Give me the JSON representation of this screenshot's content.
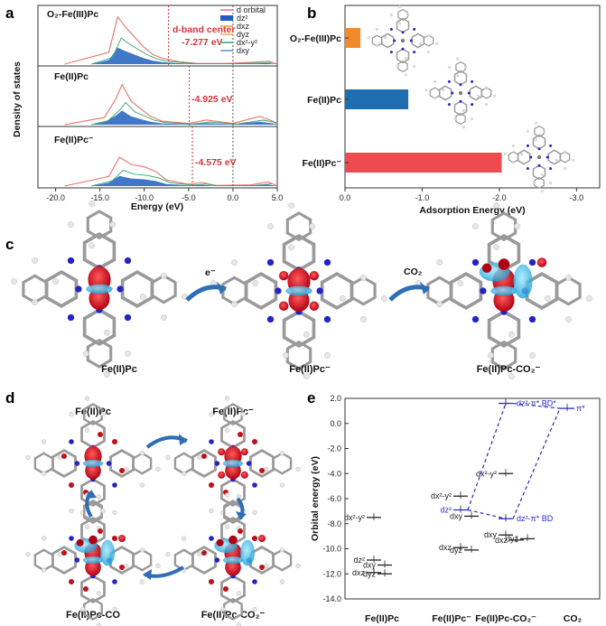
{
  "panel_labels": {
    "a": "a",
    "b": "b",
    "c": "c",
    "d": "d",
    "e": "e"
  },
  "panel_a": {
    "ylabel": "Density of states",
    "xlabel": "Energy (eV)",
    "xticks": [
      "-20.0",
      "-15.0",
      "-10.0",
      "-5.0",
      "0.0",
      "5.0"
    ],
    "subplots": [
      {
        "title": "O₂-Fe(III)Pc",
        "annotation_title": "d-band center",
        "annotation": "-7.277 eV",
        "dband": -7.277
      },
      {
        "title": "Fe(II)Pc",
        "annotation": "-4.925 eV",
        "dband": -4.925
      },
      {
        "title": "Fe(II)Pc⁻",
        "annotation": "-4.575 eV",
        "dband": -4.575
      }
    ],
    "legend": [
      {
        "label": "d orbital",
        "color": "#e8736b"
      },
      {
        "label": "dz²",
        "color": "#1f5fbf"
      },
      {
        "label": "dxz",
        "color": "#e89b3b"
      },
      {
        "label": "dyz",
        "color": "#e0b05a"
      },
      {
        "label": "dx²-y²",
        "color": "#2ea86b"
      },
      {
        "label": "dxy",
        "color": "#5a8fc9"
      }
    ]
  },
  "chart_data": [
    {
      "type": "bar",
      "orientation": "horizontal",
      "categories": [
        "O₂-Fe(III)Pc",
        "Fe(II)Pc",
        "Fe(II)Pc⁻"
      ],
      "values": [
        -0.2,
        -0.82,
        -2.03
      ],
      "colors": [
        "#f08a2a",
        "#1f6fb0",
        "#ef4a50"
      ],
      "xlabel": "Adsorption Energy (eV)",
      "xticks": [
        "0.0",
        "-1.0",
        "-2.0",
        "-3.0"
      ],
      "xlim": [
        0,
        -3.3
      ]
    },
    {
      "type": "scatter",
      "ylabel": "Orbital energy (eV)",
      "yticks": [
        "2.0",
        "0.0",
        "-2.0",
        "-4.0",
        "-6.0",
        "-8.0",
        "-10.0",
        "-12.0",
        "-14.0"
      ],
      "ylim": [
        -14,
        2
      ],
      "xcategories": [
        "Fe(II)Pc",
        "Fe(II)Pc⁻",
        "Fe(II)Pc-CO₂⁻",
        "CO₂"
      ]
    }
  ],
  "panel_e": {
    "levels": [
      {
        "col": 0,
        "e": -7.5,
        "label": "dx²-y²"
      },
      {
        "col": 0,
        "e": -10.9,
        "label": "dz²"
      },
      {
        "col": 0,
        "e": -11.3,
        "label": "dxy"
      },
      {
        "col": 0,
        "e": -11.9,
        "label": "dxz"
      },
      {
        "col": 0,
        "e": -12.0,
        "label": "dyz"
      },
      {
        "col": 1,
        "e": -5.8,
        "label": "dx²-y²"
      },
      {
        "col": 1,
        "e": -6.9,
        "label": "dz²"
      },
      {
        "col": 1,
        "e": -7.4,
        "label": "dxy"
      },
      {
        "col": 1,
        "e": -9.9,
        "label": "dxz"
      },
      {
        "col": 1,
        "e": -10.1,
        "label": "dyz"
      },
      {
        "col": 2,
        "e": 1.6,
        "label": "dz²-π*  BD*"
      },
      {
        "col": 2,
        "e": -4.0,
        "label": "dx²-y²"
      },
      {
        "col": 2,
        "e": -7.6,
        "label": "dz²-π*  BD"
      },
      {
        "col": 2,
        "e": -8.9,
        "label": "dxy"
      },
      {
        "col": 2,
        "e": -9.3,
        "label": "dxz"
      },
      {
        "col": 2,
        "e": -9.2,
        "label": "dyz"
      },
      {
        "col": 3,
        "e": 1.2,
        "label": "π*"
      }
    ]
  },
  "panel_c": {
    "captions": [
      "Fe(II)Pc",
      "Fe(II)Pc⁻",
      "Fe(II)Pc-CO₂⁻"
    ],
    "arrow1": "e⁻",
    "arrow2": "CO₂"
  },
  "panel_d": {
    "captions": [
      "Fe(II)Pc",
      "Fe(II)Pc⁻",
      "Fe(II)Pc-CO",
      "Fe(II)Pc-CO₂⁻"
    ]
  }
}
